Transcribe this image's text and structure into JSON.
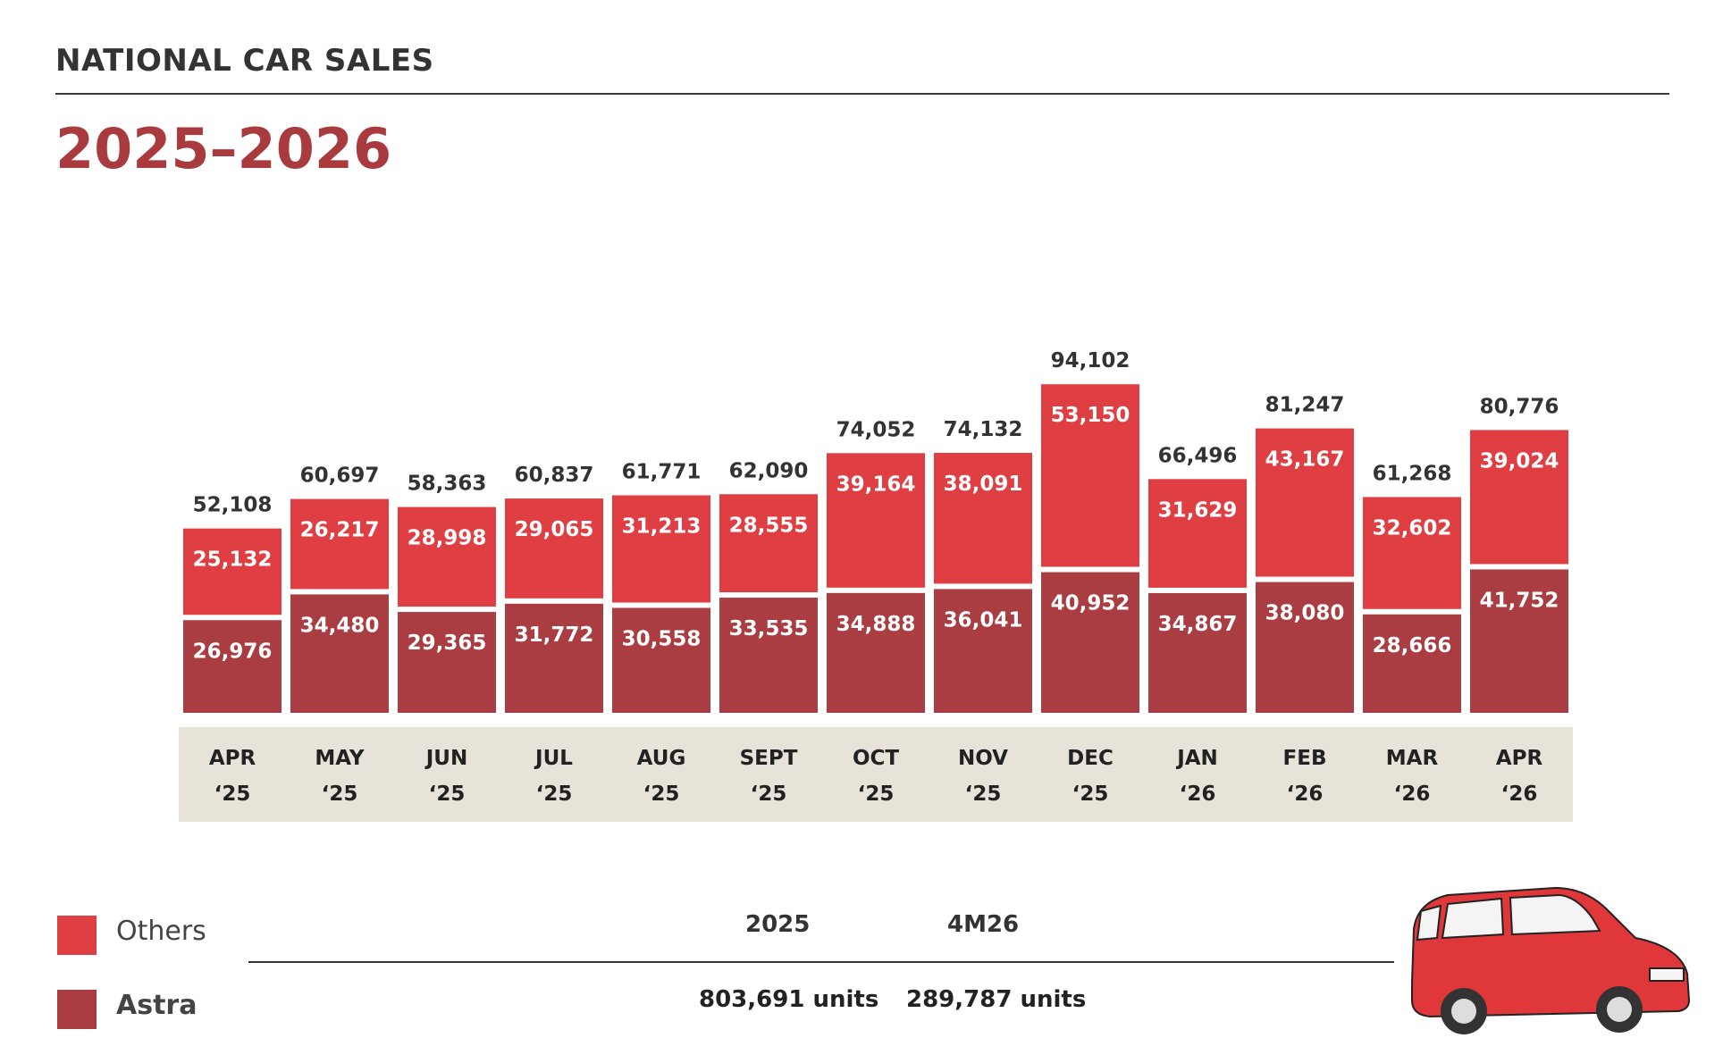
{
  "header": {
    "section": "NATIONAL CAR SALES",
    "period": "2025–2026"
  },
  "legend": [
    {
      "label": "Others",
      "color": "#df3f42"
    },
    {
      "label": "Astra",
      "color": "#aa3d42"
    }
  ],
  "summary": {
    "periods": [
      "2025",
      "4M26"
    ],
    "values": [
      "803,691 units",
      "289,787 units"
    ]
  },
  "chart_data": {
    "type": "bar",
    "stacked": true,
    "categories": [
      "APR ‘25",
      "MAY ‘25",
      "JUN ‘25",
      "JUL ‘25",
      "AUG ‘25",
      "SEPT ‘25",
      "OCT ‘25",
      "NOV ‘25",
      "DEC ‘25",
      "JAN ‘26",
      "FEB ‘26",
      "MAR ‘26",
      "APR ‘26"
    ],
    "category_lines": [
      [
        "APR",
        "‘25"
      ],
      [
        "MAY",
        "‘25"
      ],
      [
        "JUN",
        "‘25"
      ],
      [
        "JUL",
        "‘25"
      ],
      [
        "AUG",
        "‘25"
      ],
      [
        "SEPT",
        "‘25"
      ],
      [
        "OCT",
        "‘25"
      ],
      [
        "NOV",
        "‘25"
      ],
      [
        "DEC",
        "‘25"
      ],
      [
        "JAN",
        "‘26"
      ],
      [
        "FEB",
        "‘26"
      ],
      [
        "MAR",
        "‘26"
      ],
      [
        "APR",
        "‘26"
      ]
    ],
    "series": [
      {
        "name": "Astra",
        "color": "#aa3d42",
        "values": [
          26976,
          34480,
          29365,
          31772,
          30558,
          33535,
          34888,
          36041,
          40952,
          34867,
          38080,
          28666,
          41752
        ]
      },
      {
        "name": "Others",
        "color": "#df3f42",
        "values": [
          25132,
          26217,
          28998,
          29065,
          31213,
          28555,
          39164,
          38091,
          53150,
          31629,
          43167,
          32602,
          39024
        ]
      }
    ],
    "totals": [
      52108,
      60697,
      58363,
      60837,
      61771,
      62090,
      74052,
      74132,
      94102,
      66496,
      81247,
      61268,
      80776
    ],
    "value_labels": {
      "Astra": [
        "26,976",
        "34,480",
        "29,365",
        "31,772",
        "30,558",
        "33,535",
        "34,888",
        "36,041",
        "40,952",
        "34,867",
        "38,080",
        "28,666",
        "41,752"
      ],
      "Others": [
        "25,132",
        "26,217",
        "28,998",
        "29,065",
        "31,213",
        "28,555",
        "39,164",
        "38,091",
        "53,150",
        "31,629",
        "43,167",
        "32,602",
        "39,024"
      ],
      "totals": [
        "52,108",
        "60,697",
        "58,363",
        "60,837",
        "61,771",
        "62,090",
        "74,052",
        "74,132",
        "94,102",
        "66,496",
        "81,247",
        "61,268",
        "80,776"
      ]
    },
    "axis_band_color": "#e8e3d8",
    "ylim": [
      0,
      100000
    ],
    "grid": false,
    "legend_position": "bottom-left"
  }
}
